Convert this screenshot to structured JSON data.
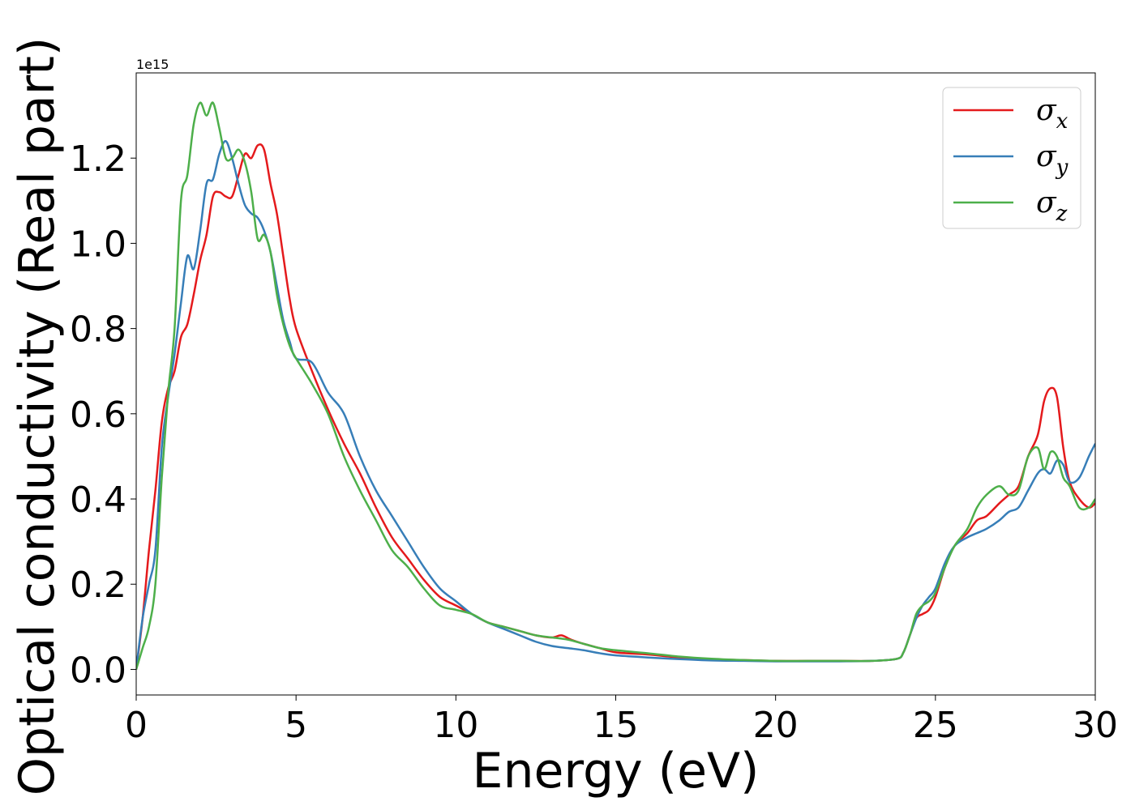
{
  "chart_data": {
    "type": "line",
    "title": "",
    "xlabel": "Energy (eV)",
    "ylabel": "Optical conductivity (Real part)",
    "y_offset_label": "1e15",
    "xlim": [
      0,
      30
    ],
    "ylim": [
      -0.06,
      1.4
    ],
    "xticks": [
      0,
      5,
      10,
      15,
      20,
      25,
      30
    ],
    "xtick_labels": [
      "0",
      "5",
      "10",
      "15",
      "20",
      "25",
      "30"
    ],
    "yticks": [
      0.0,
      0.2,
      0.4,
      0.6,
      0.8,
      1.0,
      1.2
    ],
    "ytick_labels": [
      "0.0",
      "0.2",
      "0.4",
      "0.6",
      "0.8",
      "1.0",
      "1.2"
    ],
    "grid": false,
    "legend_position": "top-right",
    "series": [
      {
        "name": "σx",
        "symbol": "σ",
        "subscript": "x",
        "color": "#e41a1c",
        "x": [
          0,
          0.2,
          0.4,
          0.6,
          0.8,
          1.0,
          1.2,
          1.4,
          1.6,
          1.8,
          2.0,
          2.2,
          2.4,
          2.6,
          2.8,
          3.0,
          3.2,
          3.4,
          3.6,
          3.8,
          4.0,
          4.2,
          4.4,
          4.6,
          4.8,
          5.0,
          5.5,
          6.0,
          6.5,
          7.0,
          7.5,
          8.0,
          8.5,
          9.0,
          9.5,
          10.0,
          10.5,
          11.0,
          11.5,
          12.0,
          12.5,
          13.0,
          13.3,
          13.6,
          14.0,
          14.5,
          15.0,
          16.0,
          17.0,
          18.0,
          19.0,
          20.0,
          21.0,
          22.0,
          23.0,
          23.8,
          24.0,
          24.2,
          24.4,
          24.6,
          24.8,
          25.0,
          25.3,
          25.6,
          26.0,
          26.3,
          26.6,
          27.0,
          27.3,
          27.6,
          27.9,
          28.2,
          28.4,
          28.6,
          28.8,
          29.0,
          29.2,
          29.5,
          29.8,
          30.0
        ],
        "values": [
          0.0,
          0.12,
          0.28,
          0.42,
          0.58,
          0.66,
          0.7,
          0.78,
          0.81,
          0.88,
          0.96,
          1.02,
          1.11,
          1.12,
          1.11,
          1.11,
          1.16,
          1.21,
          1.2,
          1.23,
          1.22,
          1.14,
          1.07,
          0.97,
          0.87,
          0.8,
          0.7,
          0.61,
          0.53,
          0.46,
          0.38,
          0.31,
          0.26,
          0.21,
          0.17,
          0.15,
          0.13,
          0.11,
          0.1,
          0.09,
          0.08,
          0.075,
          0.08,
          0.07,
          0.06,
          0.05,
          0.04,
          0.035,
          0.028,
          0.024,
          0.022,
          0.02,
          0.02,
          0.02,
          0.02,
          0.025,
          0.04,
          0.08,
          0.12,
          0.13,
          0.14,
          0.17,
          0.24,
          0.29,
          0.32,
          0.35,
          0.36,
          0.39,
          0.41,
          0.43,
          0.5,
          0.55,
          0.63,
          0.66,
          0.64,
          0.52,
          0.44,
          0.4,
          0.38,
          0.39
        ]
      },
      {
        "name": "σy",
        "symbol": "σ",
        "subscript": "y",
        "color": "#377eb8",
        "x": [
          0,
          0.2,
          0.4,
          0.6,
          0.8,
          1.0,
          1.2,
          1.4,
          1.6,
          1.8,
          2.0,
          2.2,
          2.4,
          2.6,
          2.8,
          3.0,
          3.2,
          3.4,
          3.6,
          3.8,
          4.0,
          4.2,
          4.4,
          4.6,
          4.8,
          5.0,
          5.5,
          6.0,
          6.5,
          7.0,
          7.5,
          8.0,
          8.5,
          9.0,
          9.5,
          10.0,
          10.5,
          11.0,
          11.5,
          12.0,
          12.5,
          13.0,
          13.5,
          14.0,
          14.5,
          15.0,
          16.0,
          17.0,
          18.0,
          19.0,
          20.0,
          21.0,
          22.0,
          23.0,
          23.8,
          24.0,
          24.2,
          24.4,
          24.6,
          24.8,
          25.0,
          25.3,
          25.6,
          26.0,
          26.3,
          26.6,
          27.0,
          27.3,
          27.6,
          27.9,
          28.2,
          28.4,
          28.6,
          28.8,
          29.0,
          29.2,
          29.5,
          29.8,
          30.0
        ],
        "values": [
          0.0,
          0.12,
          0.2,
          0.28,
          0.52,
          0.64,
          0.74,
          0.86,
          0.97,
          0.94,
          1.03,
          1.14,
          1.15,
          1.21,
          1.24,
          1.2,
          1.14,
          1.09,
          1.07,
          1.06,
          1.03,
          0.98,
          0.9,
          0.82,
          0.77,
          0.73,
          0.72,
          0.65,
          0.6,
          0.5,
          0.42,
          0.36,
          0.3,
          0.24,
          0.19,
          0.16,
          0.13,
          0.11,
          0.095,
          0.08,
          0.065,
          0.055,
          0.05,
          0.045,
          0.038,
          0.033,
          0.028,
          0.024,
          0.021,
          0.02,
          0.019,
          0.019,
          0.019,
          0.02,
          0.025,
          0.04,
          0.08,
          0.12,
          0.15,
          0.17,
          0.19,
          0.25,
          0.29,
          0.31,
          0.32,
          0.33,
          0.35,
          0.37,
          0.38,
          0.42,
          0.46,
          0.47,
          0.46,
          0.49,
          0.48,
          0.44,
          0.45,
          0.5,
          0.53
        ]
      },
      {
        "name": "σz",
        "symbol": "σ",
        "subscript": "z",
        "color": "#4daf4a",
        "x": [
          0,
          0.2,
          0.4,
          0.6,
          0.8,
          1.0,
          1.2,
          1.4,
          1.6,
          1.8,
          2.0,
          2.2,
          2.4,
          2.6,
          2.8,
          3.0,
          3.2,
          3.4,
          3.6,
          3.8,
          4.0,
          4.2,
          4.4,
          4.6,
          4.8,
          5.0,
          5.5,
          6.0,
          6.5,
          7.0,
          7.5,
          8.0,
          8.5,
          9.0,
          9.5,
          10.0,
          10.5,
          11.0,
          11.5,
          12.0,
          12.5,
          13.0,
          13.5,
          14.0,
          14.5,
          15.0,
          16.0,
          17.0,
          18.0,
          19.0,
          20.0,
          21.0,
          22.0,
          23.0,
          23.8,
          24.0,
          24.2,
          24.4,
          24.6,
          24.8,
          25.0,
          25.3,
          25.6,
          26.0,
          26.3,
          26.6,
          27.0,
          27.3,
          27.6,
          27.9,
          28.2,
          28.4,
          28.6,
          28.8,
          29.0,
          29.2,
          29.5,
          29.8,
          30.0
        ],
        "values": [
          0.0,
          0.05,
          0.1,
          0.2,
          0.45,
          0.65,
          0.8,
          1.1,
          1.16,
          1.28,
          1.33,
          1.3,
          1.33,
          1.27,
          1.2,
          1.2,
          1.22,
          1.19,
          1.12,
          1.01,
          1.02,
          0.98,
          0.88,
          0.81,
          0.76,
          0.73,
          0.67,
          0.6,
          0.5,
          0.42,
          0.35,
          0.28,
          0.24,
          0.19,
          0.15,
          0.14,
          0.13,
          0.11,
          0.1,
          0.09,
          0.08,
          0.075,
          0.07,
          0.06,
          0.05,
          0.045,
          0.038,
          0.03,
          0.025,
          0.022,
          0.02,
          0.02,
          0.02,
          0.02,
          0.025,
          0.04,
          0.08,
          0.13,
          0.15,
          0.16,
          0.18,
          0.24,
          0.29,
          0.33,
          0.38,
          0.41,
          0.43,
          0.41,
          0.42,
          0.5,
          0.52,
          0.47,
          0.51,
          0.5,
          0.45,
          0.43,
          0.38,
          0.38,
          0.4
        ]
      }
    ]
  }
}
